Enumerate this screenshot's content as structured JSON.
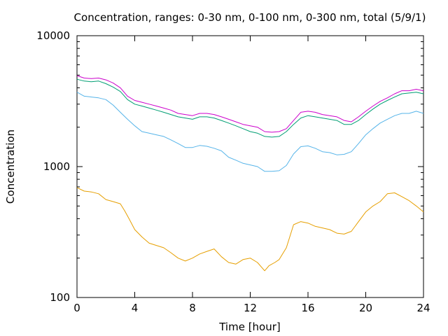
{
  "chart_data": {
    "type": "line",
    "title": "Concentration, ranges: 0-30 nm, 0-100 nm, 0-300 nm, total (5/9/1)",
    "xlabel": "Time [hour]",
    "ylabel": "Concentration",
    "xlim": [
      0,
      24
    ],
    "ylim": [
      100,
      10000
    ],
    "yscale": "log",
    "grid": false,
    "legend": "none",
    "xticks": [
      0,
      4,
      8,
      12,
      16,
      20,
      24
    ],
    "yticks": [
      100,
      1000,
      10000
    ],
    "xtick_labels": [
      "0",
      "4",
      "8",
      "12",
      "16",
      "20",
      "24"
    ],
    "ytick_labels": [
      "100",
      "1000",
      "10000"
    ],
    "series": [
      {
        "color": "#e69f00",
        "x": [
          0,
          0.5,
          1,
          1.5,
          2,
          2.5,
          3,
          3.3,
          3.6,
          4,
          4.5,
          5,
          5.5,
          6,
          6.5,
          7,
          7.5,
          8,
          8.5,
          9,
          9.5,
          10,
          10.5,
          11,
          11.5,
          12,
          12.5,
          13,
          13.3,
          13.7,
          14,
          14.5,
          15,
          15.5,
          16,
          16.5,
          17,
          17.5,
          18,
          18.5,
          19,
          19.5,
          20,
          20.5,
          21,
          21.5,
          22,
          22.5,
          23,
          23.5,
          24
        ],
        "y": [
          690,
          650,
          640,
          620,
          560,
          540,
          520,
          460,
          400,
          330,
          290,
          260,
          250,
          240,
          220,
          200,
          190,
          200,
          215,
          225,
          235,
          205,
          185,
          180,
          195,
          200,
          185,
          160,
          175,
          185,
          195,
          240,
          360,
          380,
          370,
          350,
          340,
          330,
          310,
          305,
          320,
          380,
          450,
          500,
          540,
          620,
          630,
          590,
          550,
          500,
          450
        ]
      },
      {
        "color": "#56b4e9",
        "x": [
          0,
          0.5,
          1,
          1.5,
          2,
          2.5,
          3,
          3.5,
          4,
          4.5,
          5,
          5.5,
          6,
          6.5,
          7,
          7.5,
          8,
          8.5,
          9,
          9.5,
          10,
          10.5,
          11,
          11.5,
          12,
          12.5,
          13,
          13.5,
          14,
          14.5,
          15,
          15.5,
          16,
          16.5,
          17,
          17.5,
          18,
          18.5,
          19,
          19.5,
          20,
          20.5,
          21,
          21.5,
          22,
          22.5,
          23,
          23.5,
          24
        ],
        "y": [
          3700,
          3450,
          3400,
          3350,
          3250,
          2950,
          2600,
          2300,
          2050,
          1850,
          1800,
          1750,
          1700,
          1600,
          1500,
          1400,
          1400,
          1450,
          1430,
          1380,
          1320,
          1180,
          1120,
          1060,
          1030,
          1000,
          920,
          920,
          930,
          1020,
          1250,
          1420,
          1440,
          1380,
          1300,
          1280,
          1230,
          1240,
          1300,
          1500,
          1750,
          1950,
          2150,
          2300,
          2450,
          2550,
          2550,
          2650,
          2550
        ]
      },
      {
        "color": "#009e73",
        "x": [
          0,
          0.5,
          1,
          1.5,
          2,
          2.5,
          3,
          3.5,
          4,
          4.5,
          5,
          5.5,
          6,
          6.5,
          7,
          7.5,
          8,
          8.5,
          9,
          9.5,
          10,
          10.5,
          11,
          11.5,
          12,
          12.5,
          13,
          13.5,
          14,
          14.5,
          15,
          15.5,
          16,
          16.5,
          17,
          17.5,
          18,
          18.5,
          19,
          19.5,
          20,
          20.5,
          21,
          21.5,
          22,
          22.5,
          23,
          23.5,
          24
        ],
        "y": [
          4650,
          4500,
          4450,
          4500,
          4300,
          4050,
          3750,
          3250,
          3000,
          2900,
          2800,
          2700,
          2600,
          2500,
          2400,
          2350,
          2300,
          2400,
          2400,
          2350,
          2250,
          2150,
          2050,
          1950,
          1850,
          1800,
          1700,
          1680,
          1700,
          1850,
          2100,
          2350,
          2450,
          2400,
          2350,
          2300,
          2250,
          2100,
          2100,
          2250,
          2500,
          2750,
          3000,
          3200,
          3400,
          3600,
          3650,
          3700,
          3600
        ]
      },
      {
        "color": "#cc00cc",
        "x": [
          0,
          0.5,
          1,
          1.5,
          2,
          2.5,
          3,
          3.5,
          4,
          4.5,
          5,
          5.5,
          6,
          6.5,
          7,
          7.5,
          8,
          8.5,
          9,
          9.5,
          10,
          10.5,
          11,
          11.5,
          12,
          12.5,
          13,
          13.5,
          14,
          14.5,
          15,
          15.5,
          16,
          16.5,
          17,
          17.5,
          18,
          18.5,
          19,
          19.5,
          20,
          20.5,
          21,
          21.5,
          22,
          22.5,
          23,
          23.5,
          24
        ],
        "y": [
          4950,
          4750,
          4700,
          4750,
          4600,
          4350,
          4000,
          3450,
          3200,
          3100,
          3000,
          2900,
          2800,
          2700,
          2550,
          2500,
          2450,
          2550,
          2550,
          2500,
          2400,
          2300,
          2200,
          2100,
          2050,
          2000,
          1850,
          1830,
          1850,
          1950,
          2250,
          2600,
          2650,
          2600,
          2500,
          2450,
          2400,
          2250,
          2200,
          2400,
          2650,
          2900,
          3150,
          3350,
          3600,
          3800,
          3800,
          3900,
          3800
        ]
      }
    ]
  }
}
